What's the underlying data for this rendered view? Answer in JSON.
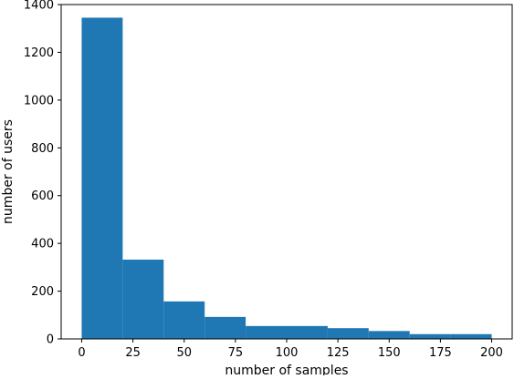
{
  "chart_data": {
    "type": "bar",
    "title": "",
    "xlabel": "number of samples",
    "ylabel": "number of users",
    "xlim": [
      -10,
      210
    ],
    "ylim": [
      0,
      1400
    ],
    "grid": false,
    "x_ticks": [
      0,
      25,
      50,
      75,
      100,
      125,
      150,
      175,
      200
    ],
    "y_ticks": [
      0,
      200,
      400,
      600,
      800,
      1000,
      1200,
      1400
    ],
    "bins": [
      {
        "x0": 0,
        "x1": 20,
        "value": 1345
      },
      {
        "x0": 20,
        "x1": 40,
        "value": 332
      },
      {
        "x0": 40,
        "x1": 60,
        "value": 157
      },
      {
        "x0": 60,
        "x1": 80,
        "value": 92
      },
      {
        "x0": 80,
        "x1": 100,
        "value": 54
      },
      {
        "x0": 100,
        "x1": 120,
        "value": 54
      },
      {
        "x0": 120,
        "x1": 140,
        "value": 45
      },
      {
        "x0": 140,
        "x1": 160,
        "value": 33
      },
      {
        "x0": 160,
        "x1": 180,
        "value": 20
      },
      {
        "x0": 180,
        "x1": 200,
        "value": 20
      }
    ],
    "bar_color": "#1f77b4"
  }
}
